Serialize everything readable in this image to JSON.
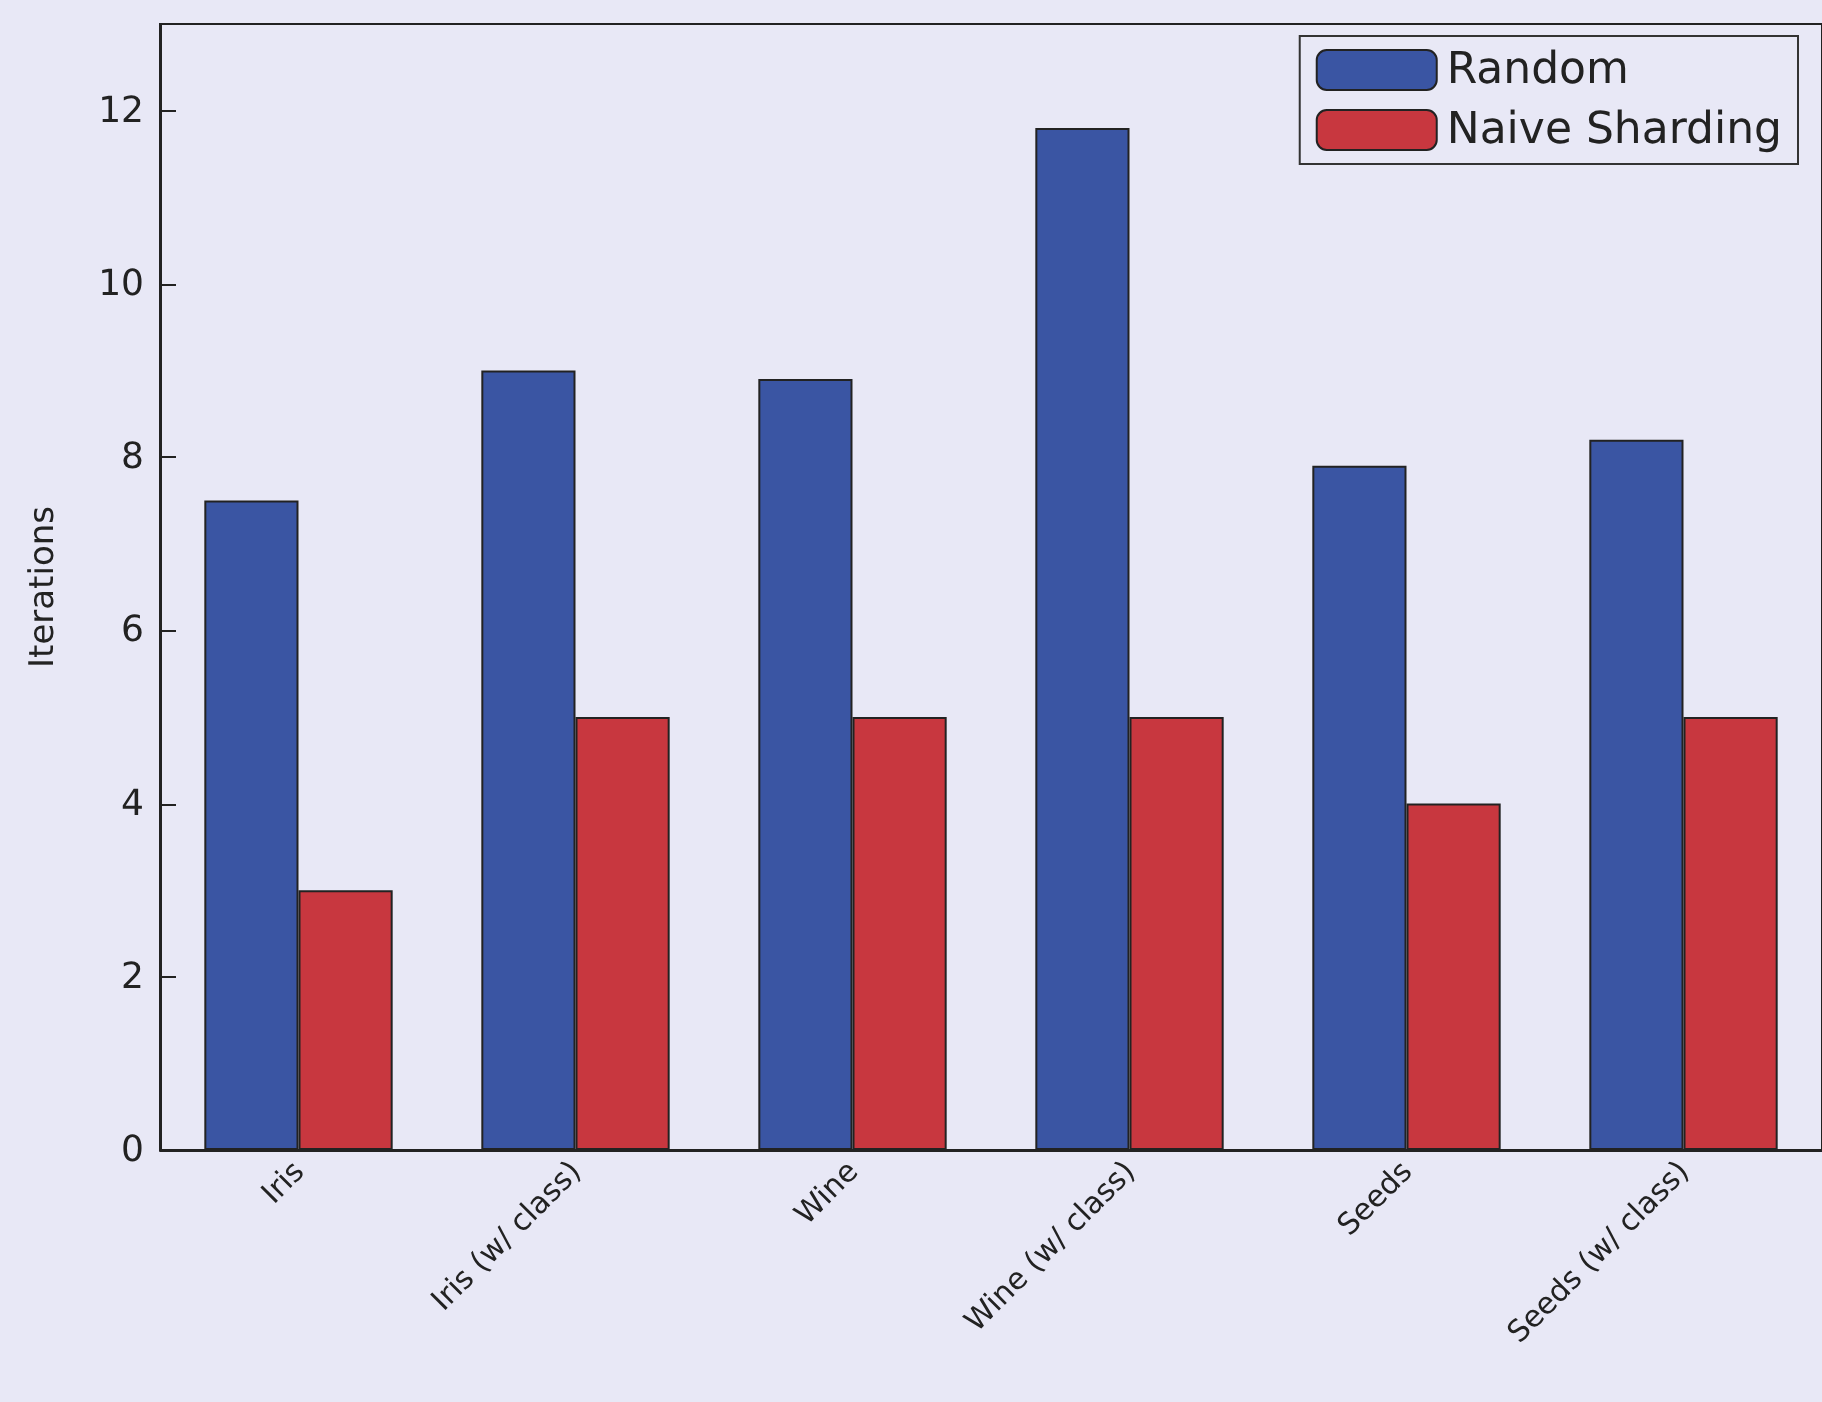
{
  "chart_data": {
    "type": "bar",
    "ylabel": "Iterations",
    "categories": [
      "Iris",
      "Iris (w/ class)",
      "Wine",
      "Wine (w/ class)",
      "Seeds",
      "Seeds (w/ class)"
    ],
    "series": [
      {
        "name": "Random",
        "color": "#3a55a3",
        "values": [
          7.5,
          9.0,
          8.9,
          11.8,
          7.9,
          8.2
        ]
      },
      {
        "name": "Naive Sharding",
        "color": "#c8373f",
        "values": [
          3,
          5,
          5,
          5,
          4,
          5
        ]
      }
    ],
    "ylim": [
      0,
      13
    ],
    "yticks": [
      0,
      2,
      4,
      6,
      8,
      10,
      12
    ],
    "grid": false,
    "legend": "top right"
  }
}
